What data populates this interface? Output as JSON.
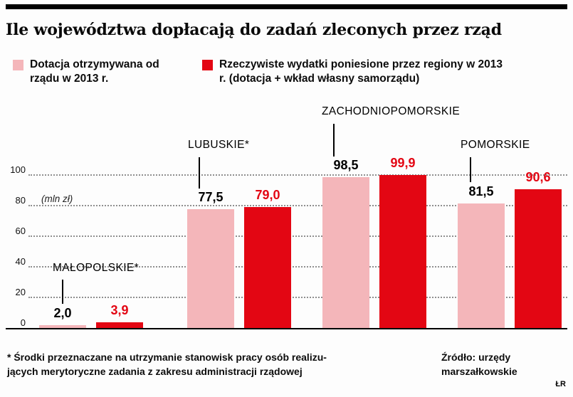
{
  "title": "Ile województwa dopłacają do zadań zleconych przez rząd",
  "colors": {
    "pink": "#f4b6ba",
    "red": "#e30613",
    "black": "#0c0c0c"
  },
  "chart_data": {
    "type": "bar",
    "categories": [
      "MAŁOPOLSKIE*",
      "LUBUSKIE*",
      "ZACHODNIOPOMORSKIE",
      "POMORSKIE"
    ],
    "series": [
      {
        "name": "Dotacja otrzymywana od rządu w 2013 r.",
        "color_key": "pink",
        "values": [
          2.0,
          77.5,
          98.5,
          81.5
        ]
      },
      {
        "name": "Rzeczywiste wydatki poniesione przez regiony w 2013 r. (dotacja + wkład własny samorządu)",
        "color_key": "red",
        "values": [
          3.9,
          79.0,
          99.9,
          90.6
        ]
      }
    ],
    "xlabel": "",
    "ylabel": "(mln zł)",
    "ylim": [
      0,
      100
    ],
    "yticks": [
      0,
      20,
      40,
      60,
      80,
      100
    ],
    "grid": "dotted-horizontal",
    "legend_position": "top",
    "value_label_decimal": ","
  },
  "footnote_lines": [
    "* Środki przeznaczane na utrzymanie stanowisk pracy osób realizu-",
    "jących merytoryczne zadania z zakresu administracji rządowej"
  ],
  "source_lines": [
    "Źródło: urzędy",
    "marszałkowskie"
  ],
  "credit": "ŁR"
}
